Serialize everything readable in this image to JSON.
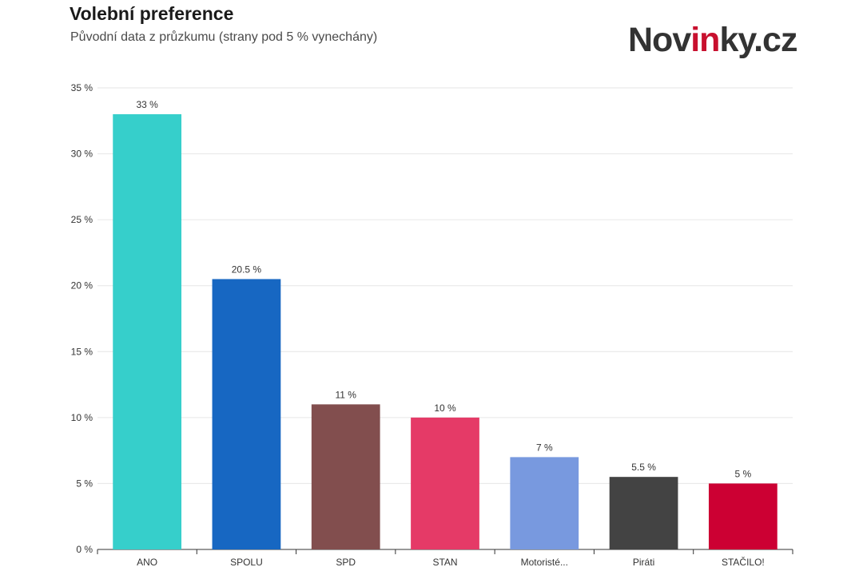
{
  "header": {
    "title": "Volební preference",
    "subtitle": "Původní data z průzkumu (strany pod 5 % vynechány)"
  },
  "logo": {
    "text_before": "Nov",
    "text_accent": "in",
    "text_after": "ky.cz",
    "colors": {
      "text": "#333333",
      "accent": "#c8102e"
    }
  },
  "chart_data": {
    "type": "bar",
    "title": "Volební preference",
    "subtitle": "Původní data z průzkumu (strany pod 5 % vynechány)",
    "xlabel": "",
    "ylabel": "",
    "ylim": [
      0,
      35
    ],
    "y_ticks": [
      0,
      5,
      10,
      15,
      20,
      25,
      30,
      35
    ],
    "y_tick_suffix": " %",
    "grid": true,
    "legend": "none",
    "categories": [
      "ANO",
      "SPOLU",
      "SPD",
      "STAN",
      "Motoristé...",
      "Piráti",
      "STAČILO!"
    ],
    "values": [
      33,
      20.5,
      11,
      10,
      7,
      5.5,
      5
    ],
    "value_labels": [
      "33 %",
      "20.5 %",
      "11 %",
      "10 %",
      "7 %",
      "5.5 %",
      "5 %"
    ],
    "colors": [
      "#36cfcb",
      "#1767c2",
      "#824e4e",
      "#e53a67",
      "#7899df",
      "#434343",
      "#cc0033"
    ]
  }
}
